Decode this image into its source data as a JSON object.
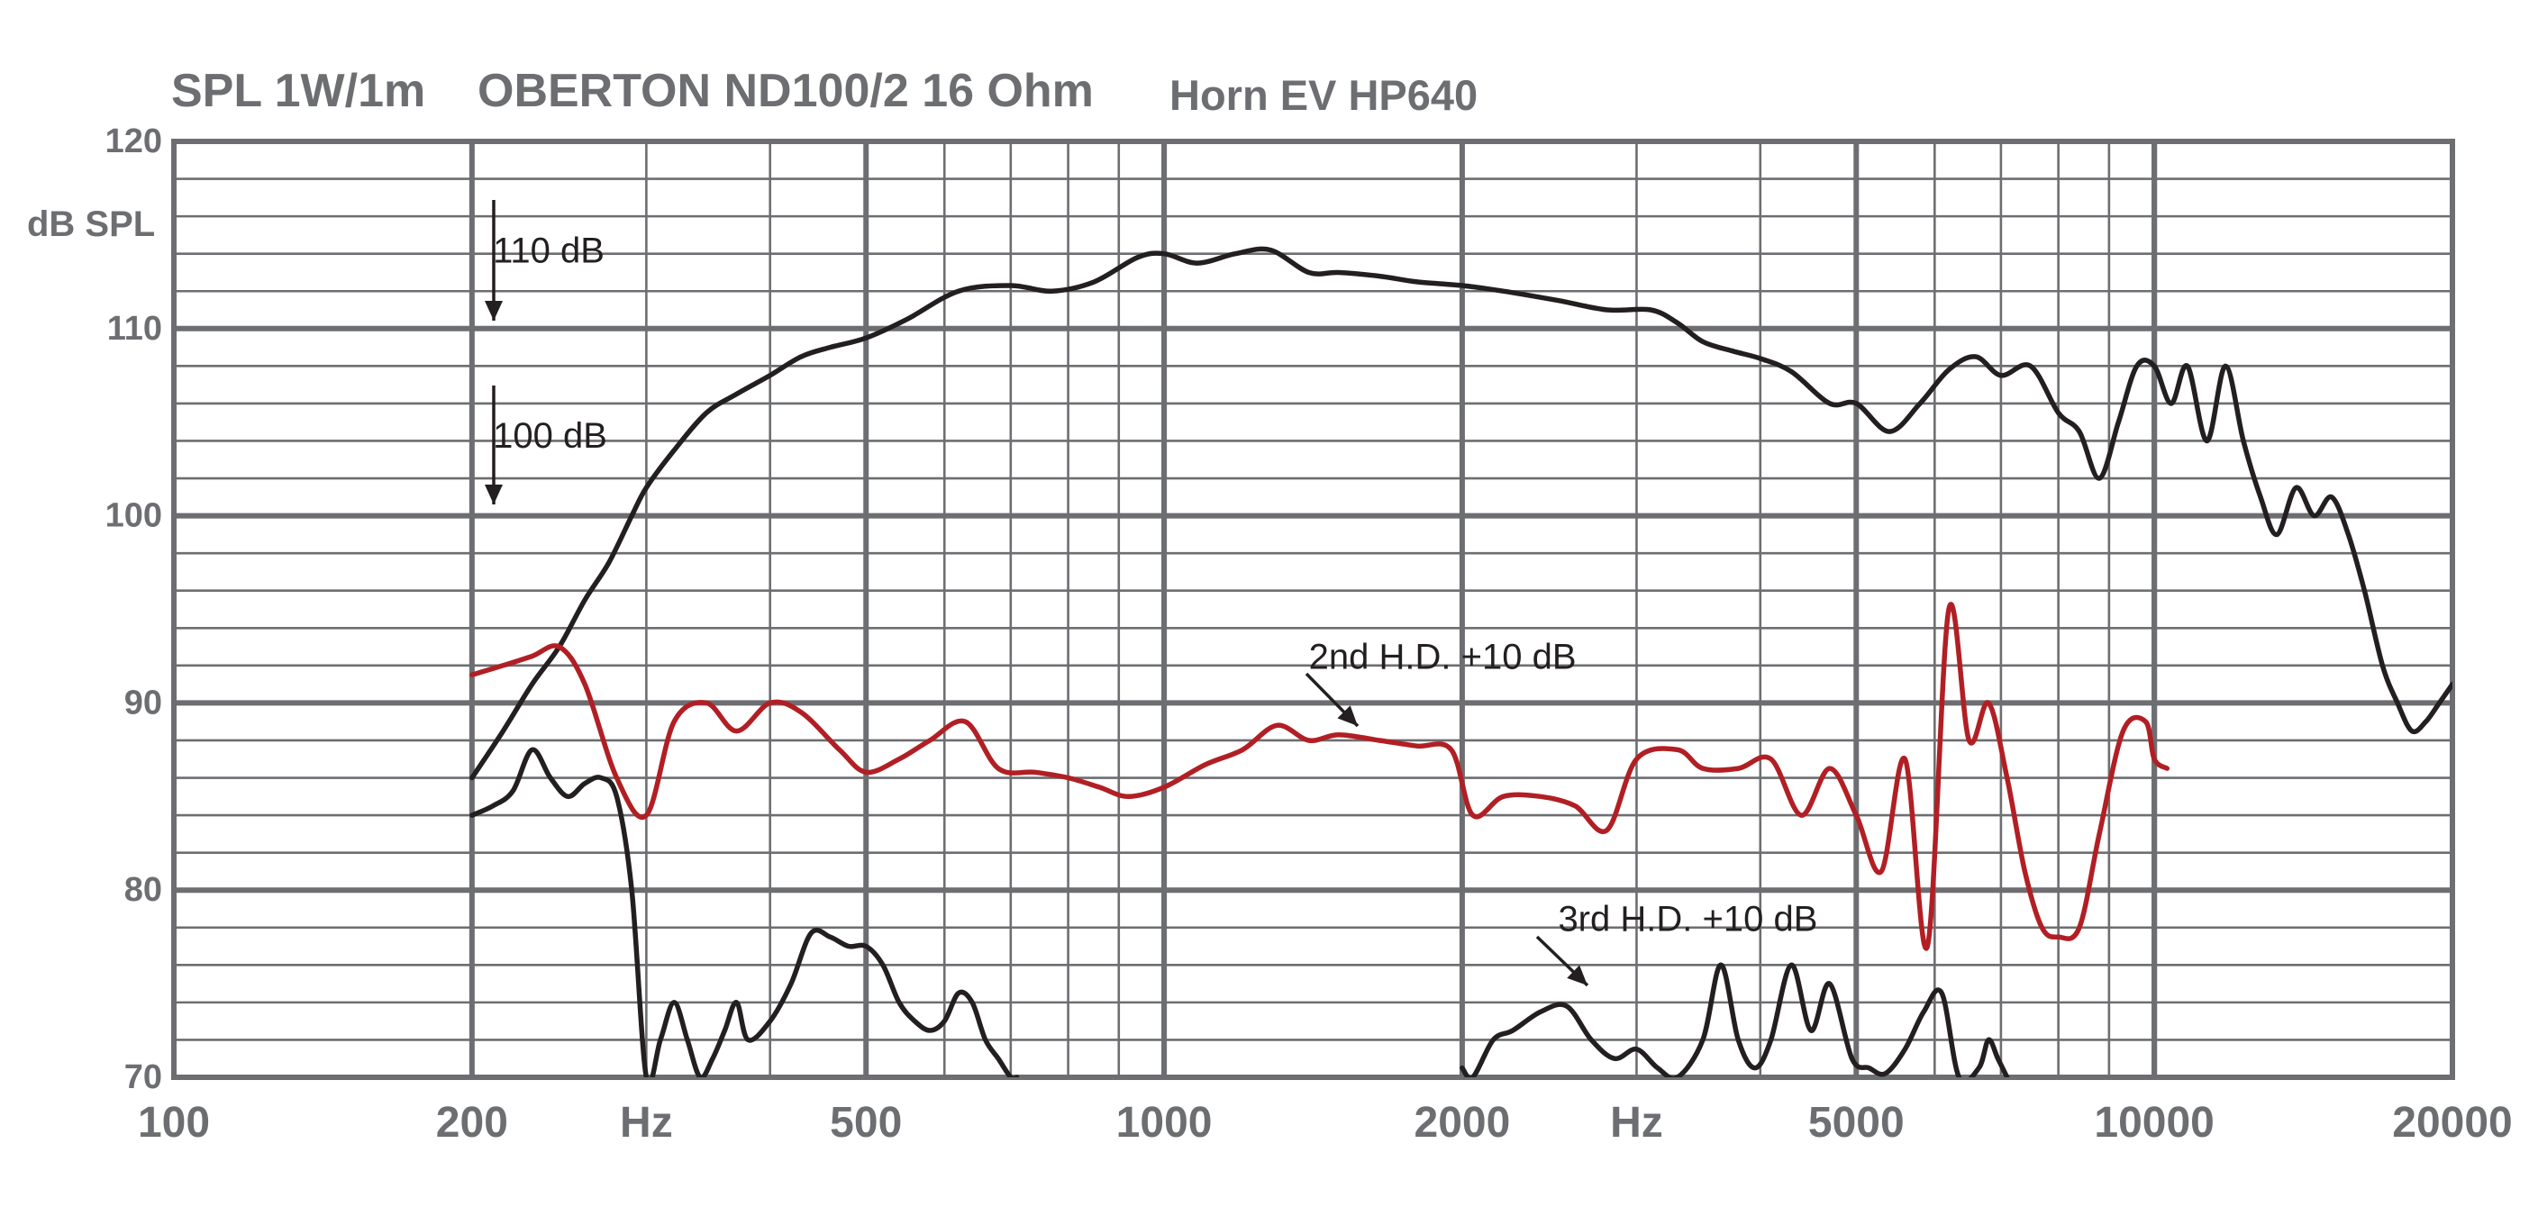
{
  "title": {
    "main": "SPL  1W/1m",
    "model": "OBERTON ND100/2  16 Ohm",
    "horn": "Horn  EV   HP640"
  },
  "chart_data": {
    "type": "line",
    "x_scale": "log",
    "xlim": [
      100,
      20000
    ],
    "ylim": [
      70,
      120
    ],
    "grid": true,
    "ylabel": "dB SPL",
    "x_ticks": [
      {
        "value": 100,
        "label": "100"
      },
      {
        "value": 200,
        "label": "200"
      },
      {
        "value": 300,
        "label": "Hz"
      },
      {
        "value": 500,
        "label": "500"
      },
      {
        "value": 1000,
        "label": "1000"
      },
      {
        "value": 2000,
        "label": "2000"
      },
      {
        "value": 3000,
        "label": "Hz"
      },
      {
        "value": 5000,
        "label": "5000"
      },
      {
        "value": 10000,
        "label": "10000"
      },
      {
        "value": 20000,
        "label": "20000"
      }
    ],
    "y_ticks": [
      {
        "value": 70,
        "label": "70"
      },
      {
        "value": 80,
        "label": "80"
      },
      {
        "value": 90,
        "label": "90"
      },
      {
        "value": 100,
        "label": "100"
      },
      {
        "value": 110,
        "label": "110"
      },
      {
        "value": 120,
        "label": "120"
      }
    ],
    "series": [
      {
        "color": "#231f20",
        "x": [
          200,
          215,
          230,
          245,
          260,
          275,
          290,
          300,
          320,
          345,
          370,
          400,
          430,
          460,
          500,
          550,
          620,
          700,
          770,
          850,
          940,
          1000,
          1080,
          1180,
          1280,
          1400,
          1500,
          1650,
          1800,
          2000,
          2200,
          2500,
          2800,
          3100,
          3300,
          3500,
          3750,
          4000,
          4300,
          4700,
          5000,
          5400,
          5800,
          6200,
          6600,
          7000,
          7500,
          8000,
          8400,
          8800,
          9200,
          9600,
          10000,
          10400,
          10800,
          11300,
          11800,
          12300,
          12800,
          13300,
          13900,
          14500,
          15100,
          15700,
          16300,
          17000,
          17600,
          18200,
          18800,
          19400,
          20000
        ],
        "y": [
          86,
          88.5,
          91,
          93,
          95.5,
          97.5,
          100,
          101.5,
          103.5,
          105.5,
          106.5,
          107.5,
          108.5,
          109,
          109.5,
          110.5,
          112,
          112.3,
          112,
          112.5,
          113.8,
          114,
          113.5,
          114,
          114.2,
          113,
          113,
          112.8,
          112.5,
          112.3,
          112,
          111.5,
          111,
          111,
          110.3,
          109.3,
          108.8,
          108.4,
          107.7,
          106,
          106,
          104.5,
          106,
          107.8,
          108.5,
          107.5,
          108,
          105.5,
          104.5,
          102,
          105,
          108,
          108,
          106,
          108,
          104,
          108,
          104,
          101,
          99,
          101.5,
          100,
          101,
          99,
          96,
          92,
          90,
          88.5,
          89,
          90,
          91
        ]
      },
      {
        "color": "#b11f24",
        "x": [
          200,
          215,
          230,
          245,
          260,
          280,
          300,
          320,
          345,
          370,
          400,
          430,
          470,
          500,
          540,
          580,
          630,
          680,
          740,
          800,
          860,
          920,
          1000,
          1100,
          1200,
          1300,
          1400,
          1500,
          1650,
          1800,
          1950,
          2050,
          2200,
          2400,
          2600,
          2800,
          3000,
          3300,
          3500,
          3800,
          4100,
          4400,
          4700,
          5000,
          5300,
          5600,
          5900,
          6200,
          6500,
          6800,
          7100,
          7400,
          7700,
          8000,
          8400,
          8800,
          9300,
          9800,
          10000,
          10300
        ],
        "y": [
          91.5,
          92,
          92.5,
          93,
          91,
          86,
          84,
          89,
          90,
          88.5,
          90,
          89.5,
          87.5,
          86.3,
          87,
          88,
          89,
          86.5,
          86.3,
          86,
          85.5,
          85,
          85.5,
          86.7,
          87.5,
          88.8,
          88,
          88.3,
          88,
          87.7,
          87.5,
          84,
          85,
          85,
          84.5,
          83.2,
          87,
          87.5,
          86.5,
          86.5,
          87,
          84,
          86.5,
          84,
          81,
          87,
          77,
          95,
          88,
          90,
          86,
          81,
          78,
          77.5,
          78,
          83,
          88.5,
          89,
          87,
          86.5
        ]
      },
      {
        "color": "#231f20",
        "x": [
          200,
          210,
          220,
          230,
          240,
          250,
          260,
          270,
          280,
          290,
          300,
          310,
          320,
          330,
          340,
          350,
          360,
          370,
          380,
          400,
          420,
          440,
          460,
          480,
          500,
          520,
          540,
          560,
          580,
          600,
          620,
          640,
          660,
          680,
          700,
          710
        ],
        "y": [
          84,
          84.5,
          85.3,
          87.5,
          86,
          85,
          85.7,
          86,
          85,
          80,
          70,
          72,
          74,
          72,
          70,
          71,
          72.5,
          74,
          72,
          73,
          75,
          77.7,
          77.5,
          77,
          77,
          76,
          74,
          73,
          72.5,
          73,
          74.5,
          74,
          72,
          71,
          70,
          70
        ]
      },
      {
        "color": "#231f20",
        "x": [
          2000,
          2050,
          2150,
          2250,
          2400,
          2550,
          2700,
          2850,
          3000,
          3150,
          3300,
          3500,
          3650,
          3800,
          3950,
          4100,
          4300,
          4500,
          4700,
          4950,
          5150,
          5350,
          5600,
          5850,
          6100,
          6350,
          6650,
          6800,
          6950,
          7100
        ],
        "y": [
          70.5,
          70,
          72,
          72.5,
          73.5,
          73.8,
          72,
          71,
          71.5,
          70.5,
          70,
          72,
          76,
          72,
          70.5,
          72,
          76,
          72.5,
          75,
          71,
          70.5,
          70.2,
          71.5,
          73.5,
          74.5,
          70,
          70.5,
          72,
          71,
          70
        ]
      }
    ],
    "annotations": [
      {
        "text": "110 dB",
        "x": 210,
        "y": 114.2
      },
      {
        "text": "100 dB",
        "x": 210,
        "y": 104.3
      },
      {
        "text": "2nd H.D.    +10 dB",
        "x": 1400,
        "y": 92.5
      },
      {
        "text": "3rd H.D. +10 dB",
        "x": 2500,
        "y": 78.5
      }
    ]
  }
}
